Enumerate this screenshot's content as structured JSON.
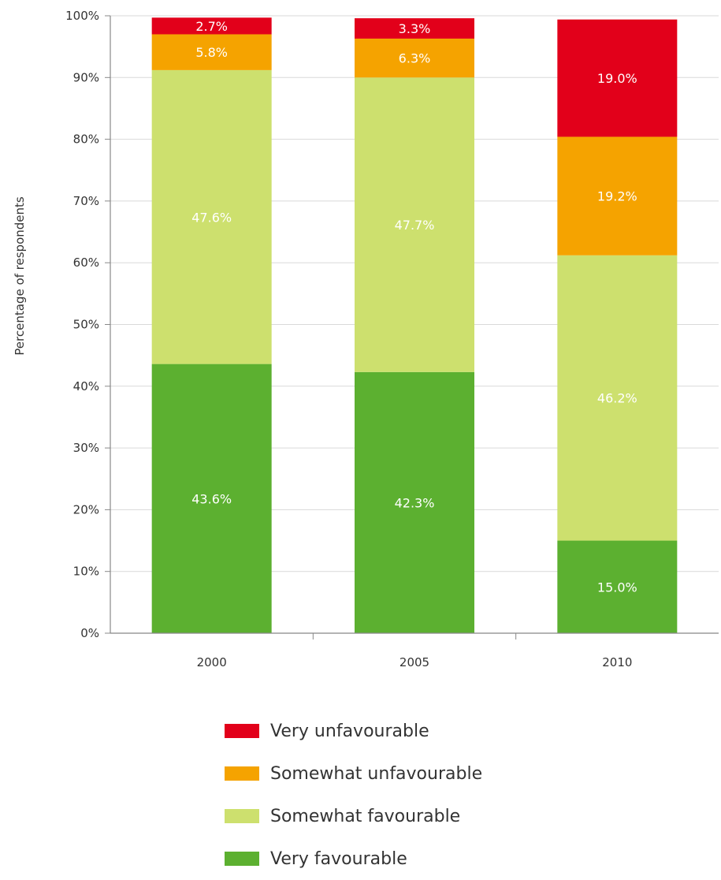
{
  "chart_data": {
    "type": "bar",
    "stacked": true,
    "categories": [
      "2000",
      "2005",
      "2010"
    ],
    "ylabel": "Percentage of respondents",
    "ylim": [
      0,
      100
    ],
    "yticks": [
      "0%",
      "10%",
      "20%",
      "30%",
      "40%",
      "50%",
      "60%",
      "70%",
      "80%",
      "90%",
      "100%"
    ],
    "grid": true,
    "legend_position": "bottom",
    "series": [
      {
        "name": "Very favourable",
        "color": "#5cb030",
        "values": [
          43.6,
          42.3,
          15.0
        ],
        "labels": [
          "43.6%",
          "42.3%",
          "15.0%"
        ]
      },
      {
        "name": "Somewhat favourable",
        "color": "#cde06e",
        "values": [
          47.6,
          47.7,
          46.2
        ],
        "labels": [
          "47.6%",
          "47.7%",
          "46.2%"
        ]
      },
      {
        "name": "Somewhat unfavourable",
        "color": "#f5a300",
        "values": [
          5.8,
          6.3,
          19.2
        ],
        "labels": [
          "5.8%",
          "6.3%",
          "19.2%"
        ]
      },
      {
        "name": "Very unfavourable",
        "color": "#e2001a",
        "values": [
          2.7,
          3.3,
          19.0
        ],
        "labels": [
          "2.7%",
          "3.3%",
          "19.0%"
        ]
      }
    ],
    "legend_order": [
      3,
      2,
      1,
      0
    ]
  }
}
